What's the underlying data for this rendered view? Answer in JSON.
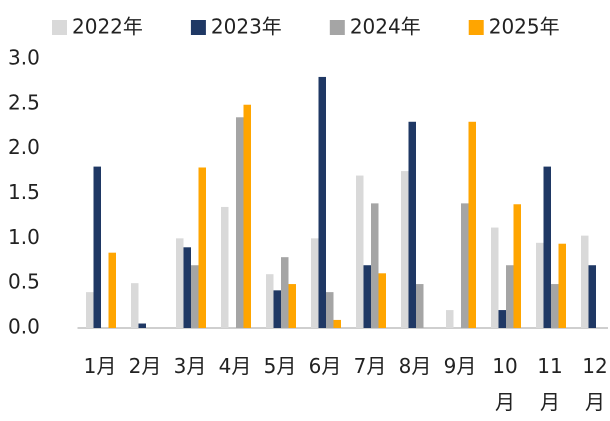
{
  "chart_data": {
    "type": "bar",
    "categories": [
      "1月",
      "2月",
      "3月",
      "4月",
      "5月",
      "6月",
      "7月",
      "8月",
      "9月",
      "10月",
      "11月",
      "12月"
    ],
    "series": [
      {
        "name": "2022年",
        "color": "#d9d9d9",
        "values": [
          0.4,
          0.5,
          1.0,
          1.35,
          0.6,
          1.0,
          1.7,
          1.75,
          0.2,
          1.12,
          0.95,
          1.03
        ]
      },
      {
        "name": "2023年",
        "color": "#1f3864",
        "values": [
          1.8,
          0.05,
          0.9,
          null,
          0.42,
          2.8,
          0.7,
          2.3,
          null,
          0.2,
          1.8,
          0.7
        ]
      },
      {
        "name": "2024年",
        "color": "#a5a5a5",
        "values": [
          null,
          null,
          0.7,
          2.35,
          0.79,
          0.4,
          1.39,
          0.49,
          1.39,
          0.7,
          0.49,
          null
        ]
      },
      {
        "name": "2025年",
        "color": "#ffa500",
        "values": [
          0.84,
          null,
          1.79,
          2.49,
          0.49,
          0.09,
          0.61,
          null,
          2.3,
          1.38,
          0.94,
          null
        ]
      }
    ],
    "ylim": [
      0,
      3
    ],
    "yticks": [
      {
        "value": 0,
        "label": "0.0"
      },
      0.5,
      {
        "value": 1,
        "label": "1.0"
      },
      1.5,
      {
        "value": 2,
        "label": "2.0"
      },
      2.5,
      {
        "value": 3,
        "label": "3.0"
      }
    ],
    "grid": false
  }
}
